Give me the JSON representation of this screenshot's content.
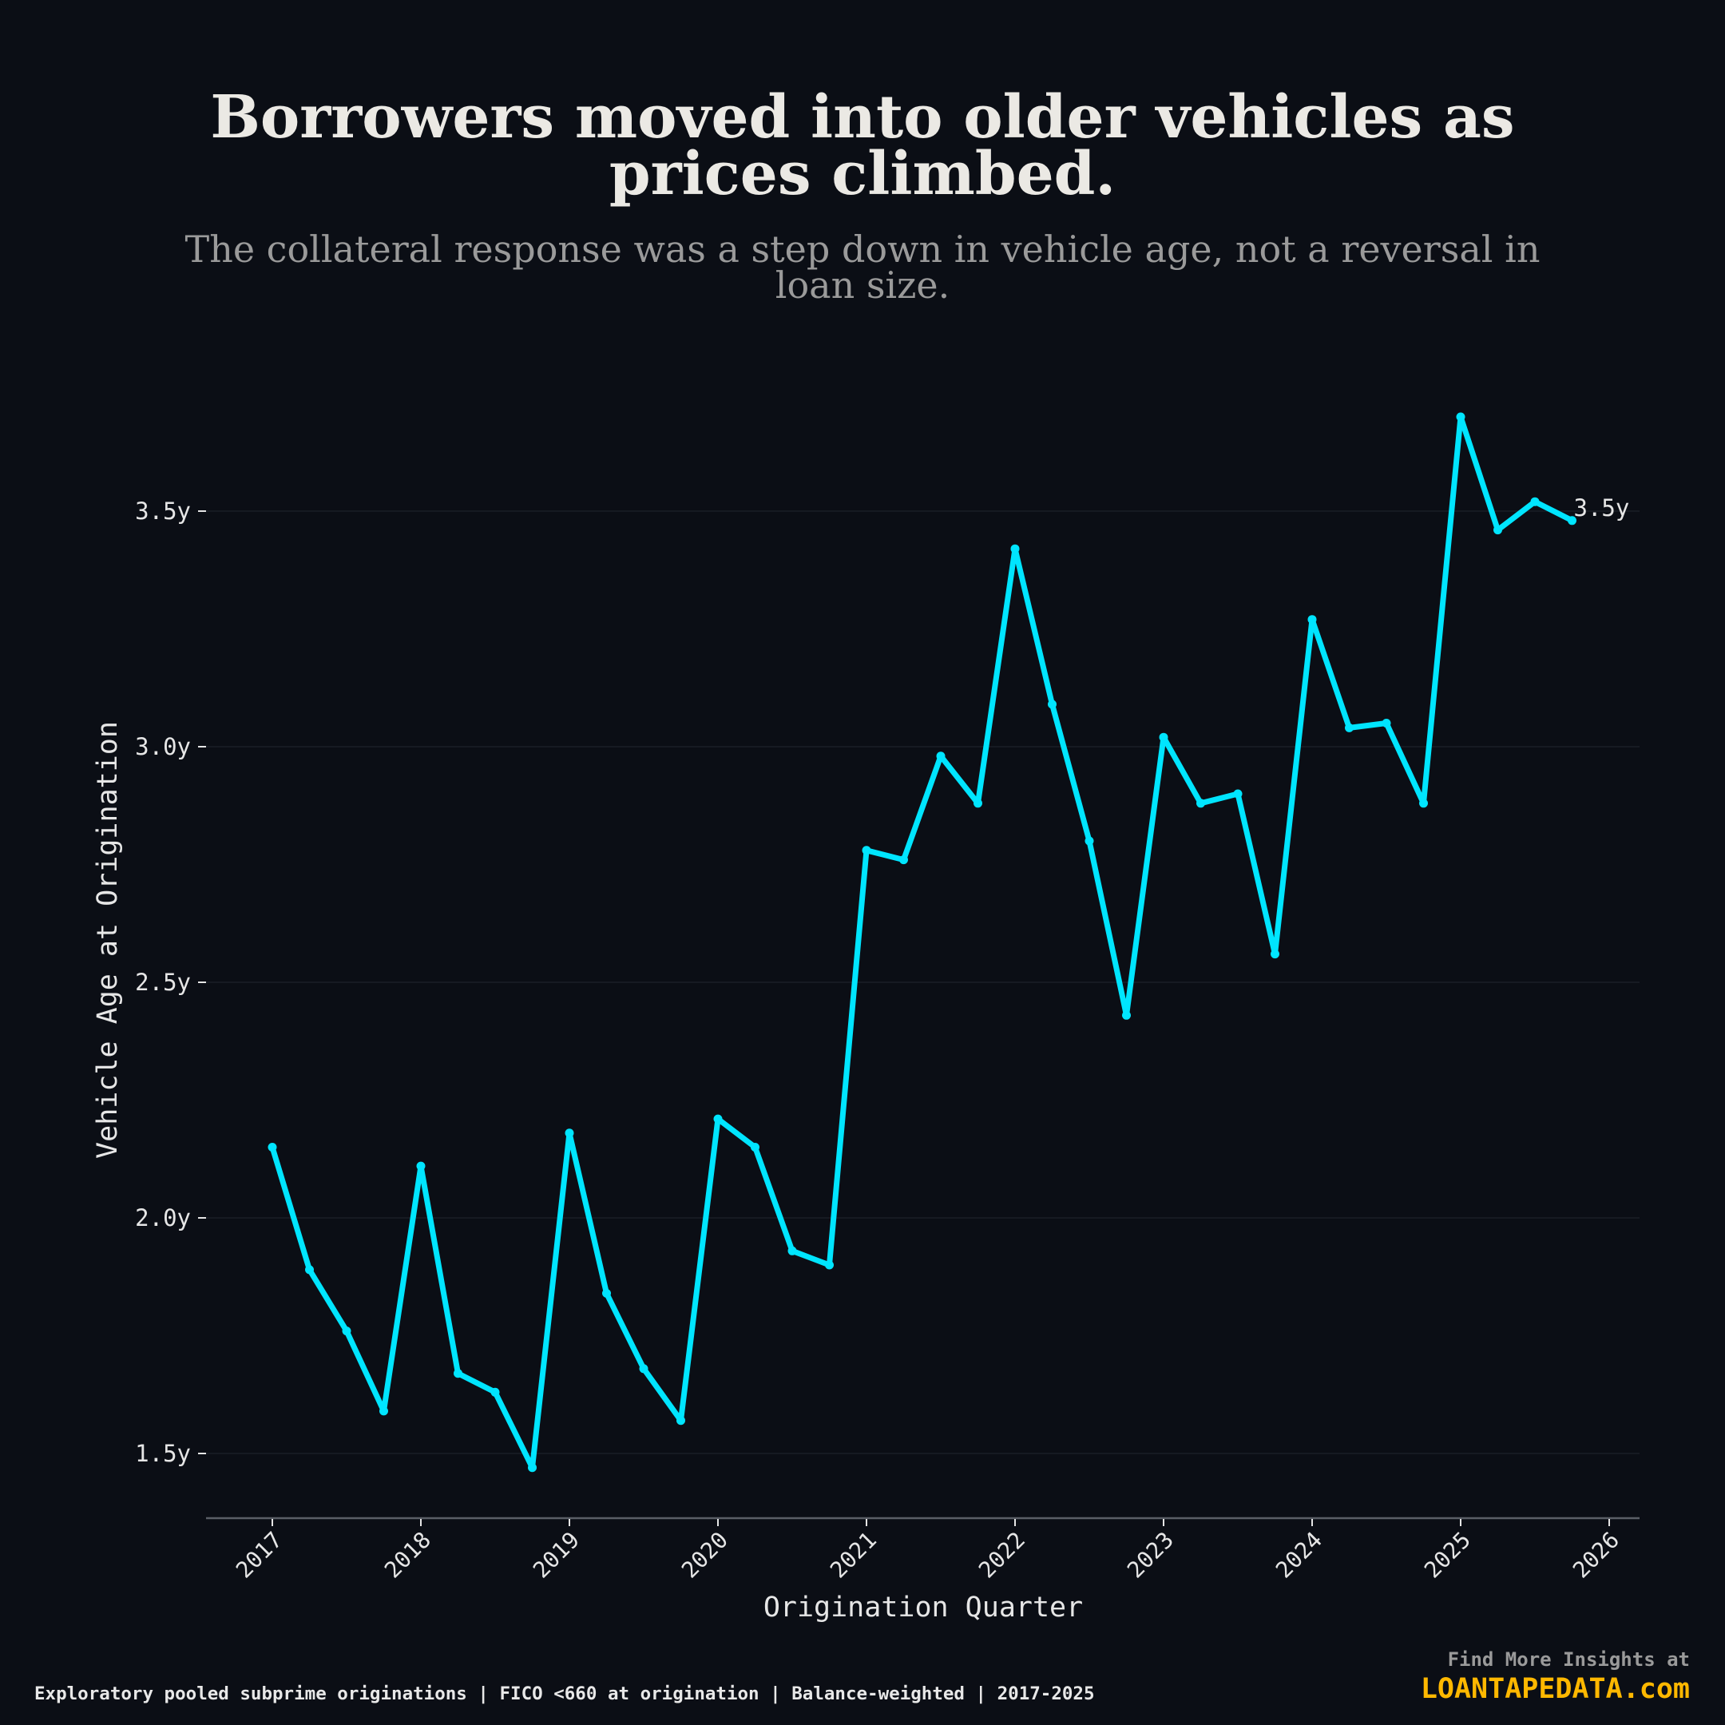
{
  "header": {
    "title": "Borrowers moved into older vehicles as prices climbed.",
    "title_lines": [
      "Borrowers moved into older vehicles as",
      "prices climbed."
    ],
    "subtitle": "The collateral response was a step down in vehicle age, not a reversal in loan size.",
    "subtitle_lines": [
      "The collateral response was a step down in vehicle age, not a reversal in",
      "loan size."
    ]
  },
  "footer": {
    "note": "Exploratory pooled subprime originations | FICO <660 at origination | Balance-weighted | 2017-2025",
    "cta_text": "Find More Insights at",
    "cta_brand": "LOANTAPEDATA.com"
  },
  "colors": {
    "background": "#0b0e15",
    "line": "#00e5ff",
    "text": "#e6e6e6",
    "muted": "#9a9a9a",
    "brand": "#ffb800",
    "grid": "#161a22",
    "axis": "#5a5e66"
  },
  "chart_data": {
    "type": "line",
    "title": "Borrowers moved into older vehicles as prices climbed.",
    "subtitle": "The collateral response was a step down in vehicle age, not a reversal in loan size.",
    "xlabel": "Origination Quarter",
    "ylabel": "Vehicle Age at Origination",
    "x_ticks": [
      "2017",
      "2018",
      "2019",
      "2020",
      "2021",
      "2022",
      "2023",
      "2024",
      "2025",
      "2026"
    ],
    "y_ticks": [
      "1.5y",
      "2.0y",
      "2.5y",
      "3.0y",
      "3.5y"
    ],
    "y_tick_values": [
      1.5,
      2.0,
      2.5,
      3.0,
      3.5
    ],
    "ylim": [
      1.37,
      3.77
    ],
    "xlim": [
      2016.56,
      2026.21
    ],
    "grid": "horizontal",
    "legend": "none",
    "end_label": "3.5y",
    "x": [
      "2017Q1",
      "2017Q2",
      "2017Q3",
      "2017Q4",
      "2018Q1",
      "2018Q2",
      "2018Q3",
      "2018Q4",
      "2019Q1",
      "2019Q2",
      "2019Q3",
      "2019Q4",
      "2020Q1",
      "2020Q2",
      "2020Q3",
      "2020Q4",
      "2021Q1",
      "2021Q2",
      "2021Q3",
      "2021Q4",
      "2022Q1",
      "2022Q2",
      "2022Q3",
      "2022Q4",
      "2023Q1",
      "2023Q2",
      "2023Q3",
      "2023Q4",
      "2024Q1",
      "2024Q2",
      "2024Q3",
      "2024Q4",
      "2025Q1",
      "2025Q2",
      "2025Q3",
      "2025Q4"
    ],
    "x_numeric": [
      2017.0,
      2017.25,
      2017.5,
      2017.75,
      2018.0,
      2018.25,
      2018.5,
      2018.75,
      2019.0,
      2019.25,
      2019.5,
      2019.75,
      2020.0,
      2020.25,
      2020.5,
      2020.75,
      2021.0,
      2021.25,
      2021.5,
      2021.75,
      2022.0,
      2022.25,
      2022.5,
      2022.75,
      2023.0,
      2023.25,
      2023.5,
      2023.75,
      2024.0,
      2024.25,
      2024.5,
      2024.75,
      2025.0,
      2025.25,
      2025.5,
      2025.75
    ],
    "series": [
      {
        "name": "Vehicle Age at Origination",
        "color": "#00e5ff",
        "values": [
          2.15,
          1.89,
          1.76,
          1.59,
          2.11,
          1.67,
          1.63,
          1.47,
          2.18,
          1.84,
          1.68,
          1.57,
          2.21,
          2.15,
          1.93,
          1.9,
          2.78,
          2.76,
          2.98,
          2.88,
          3.42,
          3.09,
          2.8,
          2.43,
          3.02,
          2.88,
          2.9,
          2.56,
          3.27,
          3.04,
          3.05,
          2.88,
          3.7,
          3.46,
          3.52,
          3.48
        ]
      }
    ]
  }
}
